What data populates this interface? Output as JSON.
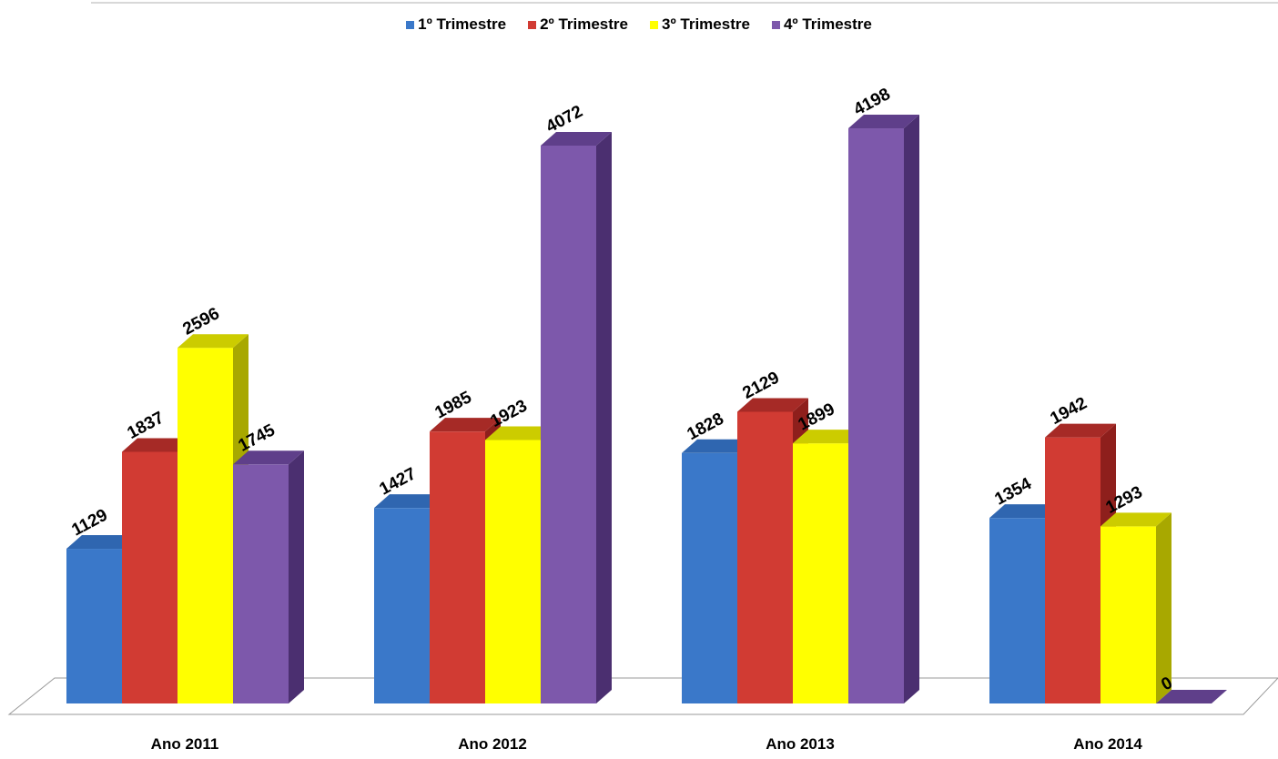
{
  "chart_data": {
    "type": "bar",
    "title": "",
    "xlabel": "",
    "ylabel": "",
    "categories": [
      "Ano 2011",
      "Ano 2012",
      "Ano 2013",
      "Ano 2014"
    ],
    "series": [
      {
        "name": "1º Trimestre",
        "values": [
          1129,
          1427,
          1828,
          1354
        ],
        "color": "#3a78c9",
        "side": "#2a5a98",
        "top": "#2f66b0"
      },
      {
        "name": "2º Trimestre",
        "values": [
          1837,
          1985,
          2129,
          1942
        ],
        "color": "#d13b33",
        "side": "#8e1f1c",
        "top": "#a62a26"
      },
      {
        "name": "3º Trimestre",
        "values": [
          2596,
          1923,
          1899,
          1293
        ],
        "color": "#ffff00",
        "side": "#a8a800",
        "top": "#cccc00"
      },
      {
        "name": "4º Trimestre",
        "values": [
          1745,
          4072,
          4198,
          0
        ],
        "color": "#7d58ab",
        "side": "#4b2f70",
        "top": "#5f3f8a"
      }
    ],
    "ylim": [
      0,
      4500
    ],
    "grid": false,
    "legend_position": "top"
  }
}
